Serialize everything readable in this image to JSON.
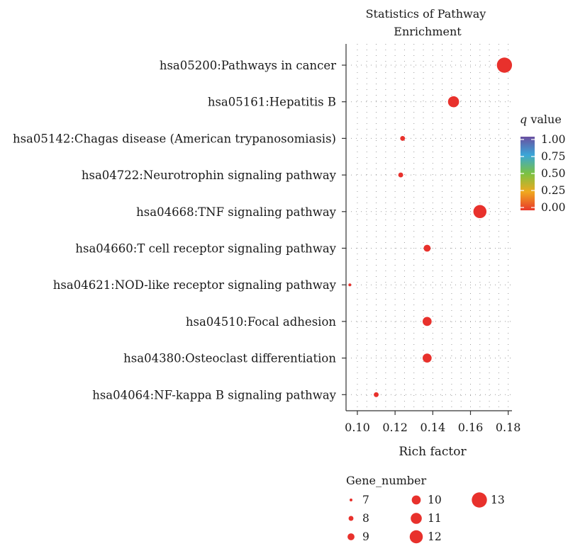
{
  "chart_data": {
    "type": "scatter",
    "title": "Statistics of Pathway Enrichment",
    "title_lines": [
      "Statistics of Pathway",
      "Enrichment"
    ],
    "xlabel": "Rich factor",
    "ylabel": "",
    "xlim": [
      0.094,
      0.182
    ],
    "xticks": [
      0.1,
      0.12,
      0.14,
      0.16,
      0.18
    ],
    "xtick_labels": [
      "0.10",
      "0.12",
      "0.14",
      "0.16",
      "0.18"
    ],
    "grid": true,
    "categories": [
      "hsa05200:Pathways in cancer",
      "hsa05161:Hepatitis B",
      "hsa05142:Chagas disease (American trypanosomiasis)",
      "hsa04722:Neurotrophin signaling pathway",
      "hsa04668:TNF signaling pathway",
      "hsa04660:T cell receptor signaling pathway",
      "hsa04621:NOD-like receptor signaling pathway",
      "hsa04510:Focal adhesion",
      "hsa04380:Osteoclast differentiation",
      "hsa04064:NF-kappa B signaling pathway"
    ],
    "points": [
      {
        "pathway": "hsa05200:Pathways in cancer",
        "rich_factor": 0.178,
        "gene_number": 13,
        "q_value": 0.0
      },
      {
        "pathway": "hsa05161:Hepatitis B",
        "rich_factor": 0.151,
        "gene_number": 11,
        "q_value": 0.0
      },
      {
        "pathway": "hsa05142:Chagas disease (American trypanosomiasis)",
        "rich_factor": 0.124,
        "gene_number": 8,
        "q_value": 0.0
      },
      {
        "pathway": "hsa04722:Neurotrophin signaling pathway",
        "rich_factor": 0.123,
        "gene_number": 8,
        "q_value": 0.0
      },
      {
        "pathway": "hsa04668:TNF signaling pathway",
        "rich_factor": 0.165,
        "gene_number": 12,
        "q_value": 0.0
      },
      {
        "pathway": "hsa04660:T cell receptor signaling pathway",
        "rich_factor": 0.137,
        "gene_number": 9,
        "q_value": 0.0
      },
      {
        "pathway": "hsa04621:NOD-like receptor signaling pathway",
        "rich_factor": 0.096,
        "gene_number": 7,
        "q_value": 0.0
      },
      {
        "pathway": "hsa04510:Focal adhesion",
        "rich_factor": 0.137,
        "gene_number": 10,
        "q_value": 0.0
      },
      {
        "pathway": "hsa04380:Osteoclast differentiation",
        "rich_factor": 0.137,
        "gene_number": 10,
        "q_value": 0.0
      },
      {
        "pathway": "hsa04064:NF-kappa B signaling pathway",
        "rich_factor": 0.11,
        "gene_number": 8,
        "q_value": 0.0
      }
    ],
    "color_legend": {
      "title_italic": "q",
      "title_rest": " value",
      "ticks": [
        1.0,
        0.75,
        0.5,
        0.25,
        0.0
      ],
      "tick_labels": [
        "1.00",
        "0.75",
        "0.50",
        "0.25",
        "0.00"
      ],
      "gradient_top_to_bottom": [
        "#6a4fa0",
        "#3aa6d8",
        "#7bc242",
        "#f0a91f",
        "#e8392b"
      ]
    },
    "size_legend": {
      "title": "Gene_number",
      "values": [
        7,
        8,
        9,
        10,
        11,
        12,
        13
      ],
      "labels": [
        "7",
        "8",
        "9",
        "10",
        "11",
        "12",
        "13"
      ]
    },
    "point_color": "#e8312c"
  }
}
